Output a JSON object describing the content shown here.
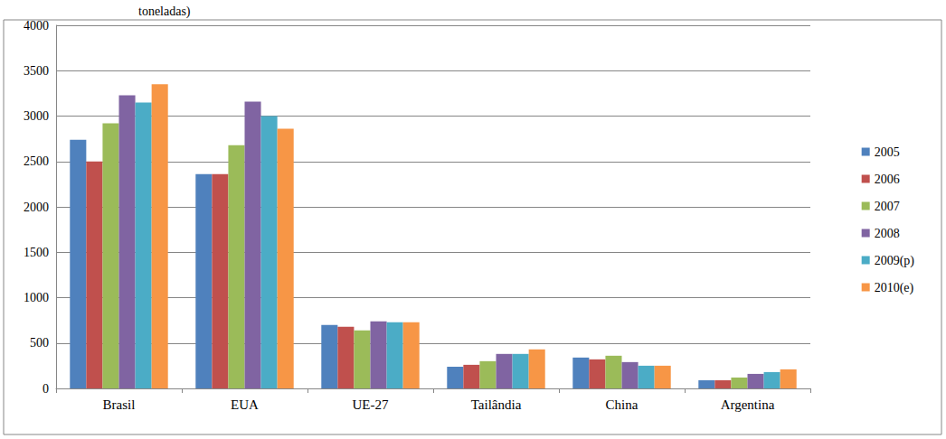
{
  "chart_data": {
    "type": "bar",
    "title": "toneladas)",
    "categories": [
      "Brasil",
      "EUA",
      "UE-27",
      "Tailândia",
      "China",
      "Argentina"
    ],
    "series": [
      {
        "name": "2005",
        "color": "#4F81BD",
        "values": [
          2740,
          2360,
          700,
          240,
          340,
          90
        ]
      },
      {
        "name": "2006",
        "color": "#C0504D",
        "values": [
          2500,
          2360,
          680,
          260,
          320,
          90
        ]
      },
      {
        "name": "2007",
        "color": "#9BBB59",
        "values": [
          2920,
          2680,
          640,
          300,
          360,
          120
        ]
      },
      {
        "name": "2008",
        "color": "#8064A2",
        "values": [
          3230,
          3160,
          740,
          380,
          290,
          160
        ]
      },
      {
        "name": "2009(p)",
        "color": "#4BACC6",
        "values": [
          3150,
          3000,
          730,
          380,
          250,
          180
        ]
      },
      {
        "name": "2010(e)",
        "color": "#F79646",
        "values": [
          3350,
          2860,
          730,
          430,
          250,
          210
        ]
      }
    ],
    "ylim": [
      0,
      4000
    ],
    "yticks": [
      0,
      500,
      1000,
      1500,
      2000,
      2500,
      3000,
      3500,
      4000
    ],
    "grid": true,
    "legend": "right"
  }
}
